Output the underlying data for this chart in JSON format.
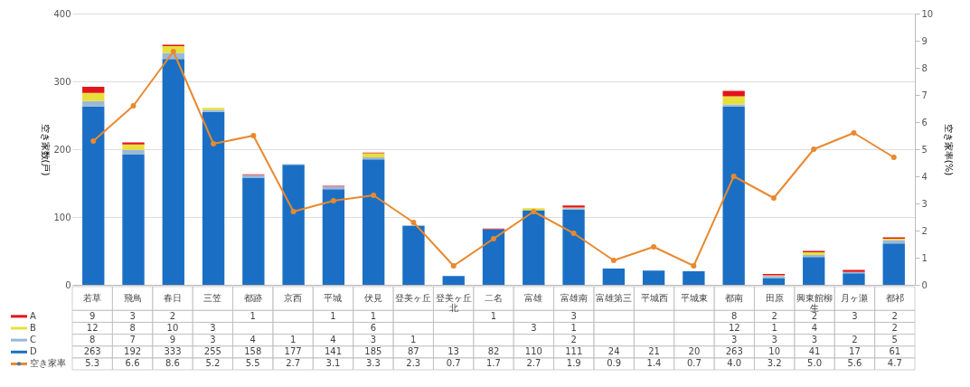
{
  "chart_data": {
    "type": "bar",
    "stacked": true,
    "legend": "bottom left",
    "data_labels": true,
    "grid": "y",
    "marker": "circle",
    "ylabel": "空き家数(戸)",
    "y2label": "空き家率(%)",
    "categories": [
      "若草",
      "飛鳥",
      "春日",
      "三笠",
      "都跡",
      "京西",
      "平城",
      "伏見",
      "登美ヶ丘",
      "登美ヶ丘北",
      "二名",
      "富雄",
      "富雄南",
      "富雄第三",
      "平城西",
      "平城東",
      "都南",
      "田原",
      "興東館柳生",
      "月ヶ瀬",
      "都祁"
    ],
    "ylim": [
      0,
      400
    ],
    "yticks": [
      0,
      100,
      200,
      300,
      400
    ],
    "y2lim": [
      0,
      10
    ],
    "y2ticks": [
      0,
      1,
      2,
      3,
      4,
      5,
      6,
      7,
      8,
      9,
      10
    ],
    "series": [
      {
        "name": "D",
        "color": "#1a6fc4",
        "values": [
          263,
          192,
          333,
          255,
          158,
          177,
          141,
          185,
          87,
          13,
          82,
          110,
          111,
          24,
          21,
          20,
          263,
          10,
          41,
          17,
          61
        ]
      },
      {
        "name": "C",
        "color": "#9bb8d8",
        "values": [
          8,
          7,
          9,
          3,
          4,
          1,
          4,
          3,
          1,
          null,
          null,
          null,
          2,
          null,
          null,
          null,
          3,
          3,
          3,
          2,
          5
        ]
      },
      {
        "name": "B",
        "color": "#e8e03a",
        "values": [
          12,
          8,
          10,
          3,
          null,
          null,
          null,
          6,
          null,
          null,
          null,
          3,
          1,
          null,
          null,
          null,
          12,
          1,
          4,
          null,
          2
        ]
      },
      {
        "name": "A",
        "color": "#e3141b",
        "values": [
          9,
          3,
          2,
          null,
          1,
          null,
          1,
          1,
          null,
          null,
          1,
          null,
          3,
          null,
          null,
          null,
          8,
          2,
          2,
          3,
          2
        ]
      },
      {
        "name": "空き家率",
        "type": "line",
        "axis": "y2",
        "color": "#e8892f",
        "value_labels": [
          "5.3",
          "6.6",
          "8.6",
          "5.2",
          "5.5",
          "2.7",
          "3.1",
          "3.3",
          "2.3",
          "0.7",
          "1.7",
          "2.7",
          "1.9",
          "0.9",
          "1.4",
          "0.7",
          "4.0",
          "3.2",
          "5.0",
          "5.6",
          "4.7"
        ],
        "values": [
          5.3,
          6.6,
          8.6,
          5.2,
          5.5,
          2.7,
          3.1,
          3.3,
          2.3,
          0.7,
          1.7,
          2.7,
          1.9,
          0.9,
          1.4,
          0.7,
          4.0,
          3.2,
          5.0,
          5.6,
          4.7
        ]
      }
    ]
  }
}
